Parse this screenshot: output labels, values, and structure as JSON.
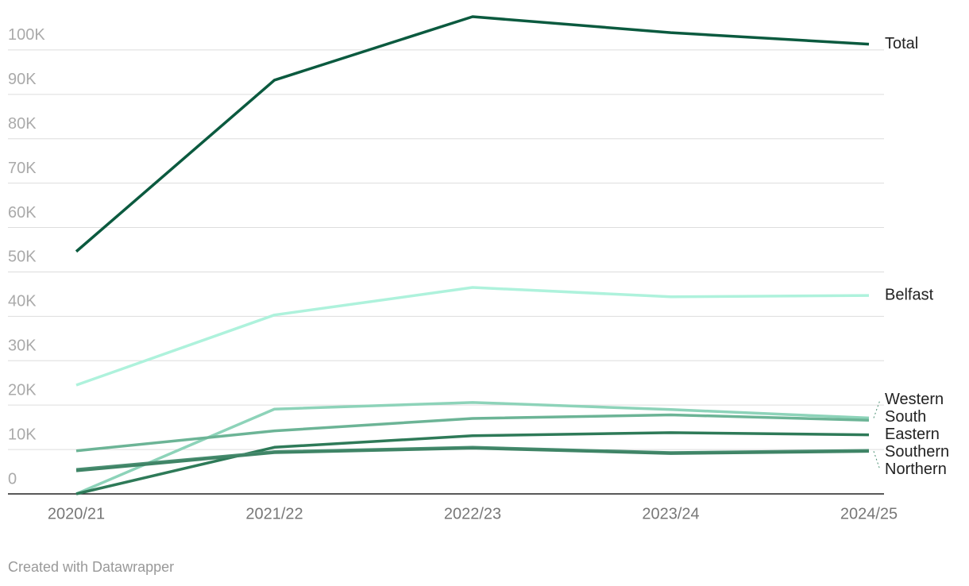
{
  "chart_data": {
    "type": "line",
    "categories": [
      "2020/21",
      "2021/22",
      "2022/23",
      "2023/24",
      "2024/25"
    ],
    "series": [
      {
        "name": "Total",
        "color": "#0b5a3f",
        "values": [
          54600,
          93200,
          107500,
          103900,
          101300
        ]
      },
      {
        "name": "Belfast",
        "color": "#aef2dc",
        "values": [
          24500,
          40300,
          46500,
          44400,
          44700
        ]
      },
      {
        "name": "Western",
        "color": "#8dd3b9",
        "values": [
          0,
          19100,
          20600,
          19000,
          17100
        ]
      },
      {
        "name": "South",
        "color": "#6cb496",
        "values": [
          9700,
          14200,
          17000,
          17800,
          16600
        ]
      },
      {
        "name": "Eastern",
        "color": "#2e7a58",
        "values": [
          0,
          10500,
          13100,
          13800,
          13300
        ]
      },
      {
        "name": "Southern",
        "color": "#4b8f73",
        "values": [
          5500,
          9500,
          10500,
          9300,
          9800
        ]
      },
      {
        "name": "Northern",
        "color": "#3f8466",
        "values": [
          5200,
          9300,
          10300,
          9100,
          9600
        ]
      }
    ],
    "ylim": [
      0,
      107500
    ],
    "yticks": [
      0,
      {
        "value": 10000,
        "label": "10K"
      },
      {
        "value": 20000,
        "label": "20K"
      },
      {
        "value": 30000,
        "label": "30K"
      },
      {
        "value": 40000,
        "label": "40K"
      },
      {
        "value": 50000,
        "label": "50K"
      },
      {
        "value": 60000,
        "label": "60K"
      },
      {
        "value": 70000,
        "label": "70K"
      },
      {
        "value": 80000,
        "label": "80K"
      },
      {
        "value": 90000,
        "label": "90K"
      },
      {
        "value": 100000,
        "label": "100K"
      }
    ],
    "grid": true,
    "footer": "Created with Datawrapper"
  }
}
